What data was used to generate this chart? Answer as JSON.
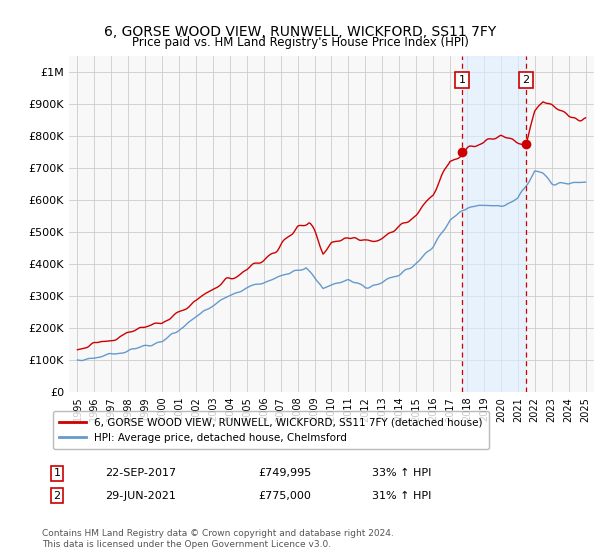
{
  "title": "6, GORSE WOOD VIEW, RUNWELL, WICKFORD, SS11 7FY",
  "subtitle": "Price paid vs. HM Land Registry's House Price Index (HPI)",
  "legend_label_red": "6, GORSE WOOD VIEW, RUNWELL, WICKFORD, SS11 7FY (detached house)",
  "legend_label_blue": "HPI: Average price, detached house, Chelmsford",
  "footnote": "Contains HM Land Registry data © Crown copyright and database right 2024.\nThis data is licensed under the Open Government Licence v3.0.",
  "transactions": [
    {
      "label": "1",
      "date": "22-SEP-2017",
      "price": 749995,
      "hpi_pct": "33% ↑ HPI",
      "x": 2017.72
    },
    {
      "label": "2",
      "date": "29-JUN-2021",
      "price": 775000,
      "hpi_pct": "31% ↑ HPI",
      "x": 2021.49
    }
  ],
  "ylim": [
    0,
    1050000
  ],
  "yticks": [
    0,
    100000,
    200000,
    300000,
    400000,
    500000,
    600000,
    700000,
    800000,
    900000,
    1000000
  ],
  "ytick_labels": [
    "£0",
    "£100K",
    "£200K",
    "£300K",
    "£400K",
    "£500K",
    "£600K",
    "£700K",
    "£800K",
    "£900K",
    "£1M"
  ],
  "xlim_start": 1994.5,
  "xlim_end": 2025.5,
  "red_color": "#cc0000",
  "blue_color": "#6699cc",
  "blue_fill_color": "#ddeeff",
  "bg_color": "#f8f8f8",
  "grid_color": "#cccccc"
}
